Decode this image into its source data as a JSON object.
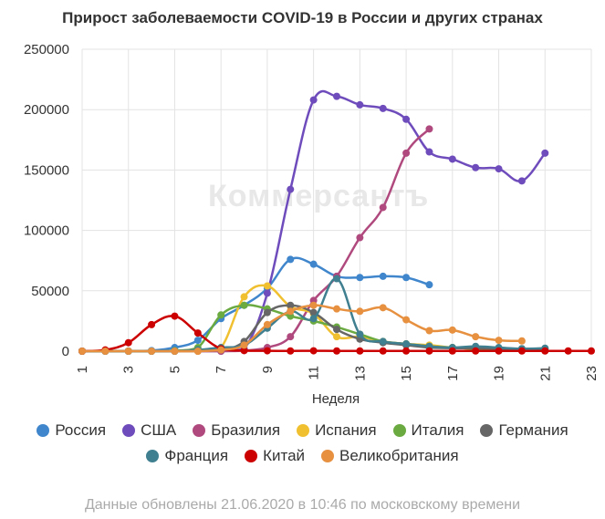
{
  "chart_data": {
    "type": "line",
    "title": "Прирост заболеваемости COVID-19 в России и других странах",
    "xlabel": "Неделя",
    "ylabel": "",
    "xlim": [
      1,
      23
    ],
    "ylim": [
      0,
      250000
    ],
    "x_ticks": [
      1,
      3,
      5,
      7,
      9,
      11,
      13,
      15,
      17,
      19,
      21,
      23
    ],
    "y_ticks": [
      0,
      50000,
      100000,
      150000,
      200000,
      250000
    ],
    "grid": true,
    "legend_position": "bottom",
    "watermark": "Коммерсантъ",
    "series": [
      {
        "name": "Россия",
        "color": "#3f86cc",
        "x": [
          1,
          2,
          3,
          4,
          5,
          6,
          7,
          8,
          9,
          10,
          11,
          12,
          13,
          14,
          15,
          16
        ],
        "values": [
          0,
          0,
          0,
          500,
          3000,
          9000,
          27000,
          38000,
          52000,
          76000,
          72000,
          62000,
          61000,
          62000,
          61000,
          55000
        ]
      },
      {
        "name": "США",
        "color": "#6f4cbc",
        "x": [
          1,
          2,
          3,
          4,
          5,
          6,
          7,
          8,
          9,
          10,
          11,
          12,
          13,
          14,
          15,
          16,
          17,
          18,
          19,
          20,
          21
        ],
        "values": [
          0,
          0,
          0,
          0,
          0,
          0,
          0,
          2000,
          48000,
          134000,
          208000,
          211000,
          204000,
          201000,
          192000,
          165000,
          159000,
          152000,
          151000,
          141000,
          164000
        ]
      },
      {
        "name": "Бразилия",
        "color": "#b04a7e",
        "x": [
          1,
          2,
          3,
          4,
          5,
          6,
          7,
          8,
          9,
          10,
          11,
          12,
          13,
          14,
          15,
          16
        ],
        "values": [
          0,
          0,
          0,
          0,
          0,
          0,
          0,
          500,
          3000,
          12000,
          42000,
          62000,
          94000,
          119000,
          164000,
          184000
        ]
      },
      {
        "name": "Испания",
        "color": "#f0c030",
        "x": [
          1,
          2,
          3,
          4,
          5,
          6,
          7,
          8,
          9,
          10,
          11,
          12,
          13,
          14,
          15,
          16,
          17,
          18,
          19,
          20
        ],
        "values": [
          0,
          0,
          0,
          0,
          0,
          0,
          3000,
          45000,
          54000,
          37000,
          31000,
          12000,
          12000,
          8000,
          6000,
          5000,
          3000,
          2000,
          2000,
          2000
        ]
      },
      {
        "name": "Италия",
        "color": "#6aaa40",
        "x": [
          1,
          2,
          3,
          4,
          5,
          6,
          7,
          8,
          9,
          10,
          11,
          12,
          13,
          14,
          15,
          16,
          17,
          18,
          19,
          20
        ],
        "values": [
          0,
          0,
          0,
          0,
          500,
          3000,
          30000,
          38000,
          35000,
          29000,
          25000,
          20000,
          14000,
          8000,
          6000,
          4000,
          3000,
          2000,
          2000,
          1500
        ]
      },
      {
        "name": "Германия",
        "color": "#666666",
        "x": [
          1,
          2,
          3,
          4,
          5,
          6,
          7,
          8,
          9,
          10,
          11,
          12,
          13,
          14,
          15,
          16,
          17,
          18,
          19,
          20,
          21
        ],
        "values": [
          0,
          0,
          0,
          0,
          0,
          1000,
          1000,
          8000,
          32000,
          38000,
          32000,
          18000,
          10000,
          7000,
          5000,
          3000,
          2500,
          2500,
          2000,
          2000,
          2000
        ]
      },
      {
        "name": "Франция",
        "color": "#3f7f8f",
        "x": [
          1,
          2,
          3,
          4,
          5,
          6,
          7,
          8,
          9,
          10,
          11,
          12,
          13,
          14,
          15,
          16,
          17,
          18,
          19,
          20,
          21
        ],
        "values": [
          0,
          0,
          0,
          0,
          0,
          1000,
          3000,
          5000,
          19000,
          33000,
          27000,
          60000,
          14000,
          8000,
          6000,
          4000,
          3000,
          4000,
          3000,
          2000,
          2500
        ]
      },
      {
        "name": "Китай",
        "color": "#cc0000",
        "x": [
          1,
          2,
          3,
          4,
          5,
          6,
          7,
          8,
          9,
          10,
          11,
          12,
          13,
          14,
          15,
          16,
          17,
          18,
          19,
          20,
          21,
          22,
          23
        ],
        "values": [
          0,
          1000,
          7000,
          22000,
          29000,
          15000,
          2000,
          500,
          300,
          200,
          300,
          200,
          200,
          200,
          200,
          200,
          200,
          200,
          200,
          200,
          200,
          200,
          200
        ]
      },
      {
        "name": "Великобритания",
        "color": "#e69040",
        "x": [
          1,
          2,
          3,
          4,
          5,
          6,
          7,
          8,
          9,
          10,
          11,
          12,
          13,
          14,
          15,
          16,
          17,
          18,
          19,
          20
        ],
        "values": [
          0,
          0,
          0,
          0,
          0,
          0,
          1000,
          5000,
          22000,
          33000,
          38000,
          35000,
          33000,
          36000,
          26000,
          17000,
          17500,
          12000,
          9000,
          8500
        ]
      }
    ]
  },
  "footnote": "Данные обновлены 21.06.2020 в 10:46 по московскому времени"
}
